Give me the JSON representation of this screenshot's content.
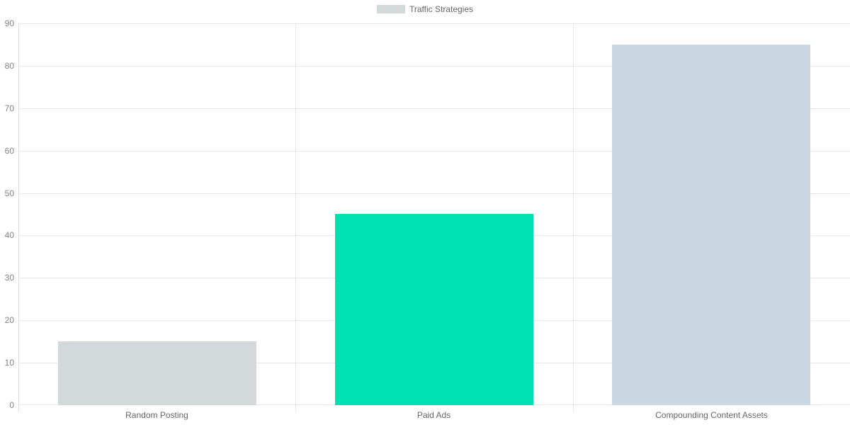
{
  "legend": {
    "label": "Traffic Strategies",
    "swatch_color": "#d3d8db"
  },
  "chart_data": {
    "type": "bar",
    "title": "",
    "xlabel": "",
    "ylabel": "",
    "categories": [
      "Random Posting",
      "Paid Ads",
      "Compounding Content Assets"
    ],
    "series": [
      {
        "name": "Traffic Strategies",
        "values": [
          15,
          45,
          85
        ],
        "bar_colors": [
          "#d3d8db",
          "#00e0b2",
          "#cbd6e3"
        ]
      }
    ],
    "ylim": [
      0,
      90
    ],
    "ytick_step": 10,
    "ytick_labels": [
      "0",
      "10",
      "20",
      "30",
      "40",
      "50",
      "60",
      "70",
      "80",
      "90"
    ],
    "grid": true,
    "legend_position": "top-center"
  },
  "colors": {
    "background": "#ffffff",
    "gridline": "#e6e6e6",
    "axis_line": "#e0e0e0",
    "tick_text": "#858585",
    "category_text": "#666666",
    "legend_text": "#666666"
  }
}
